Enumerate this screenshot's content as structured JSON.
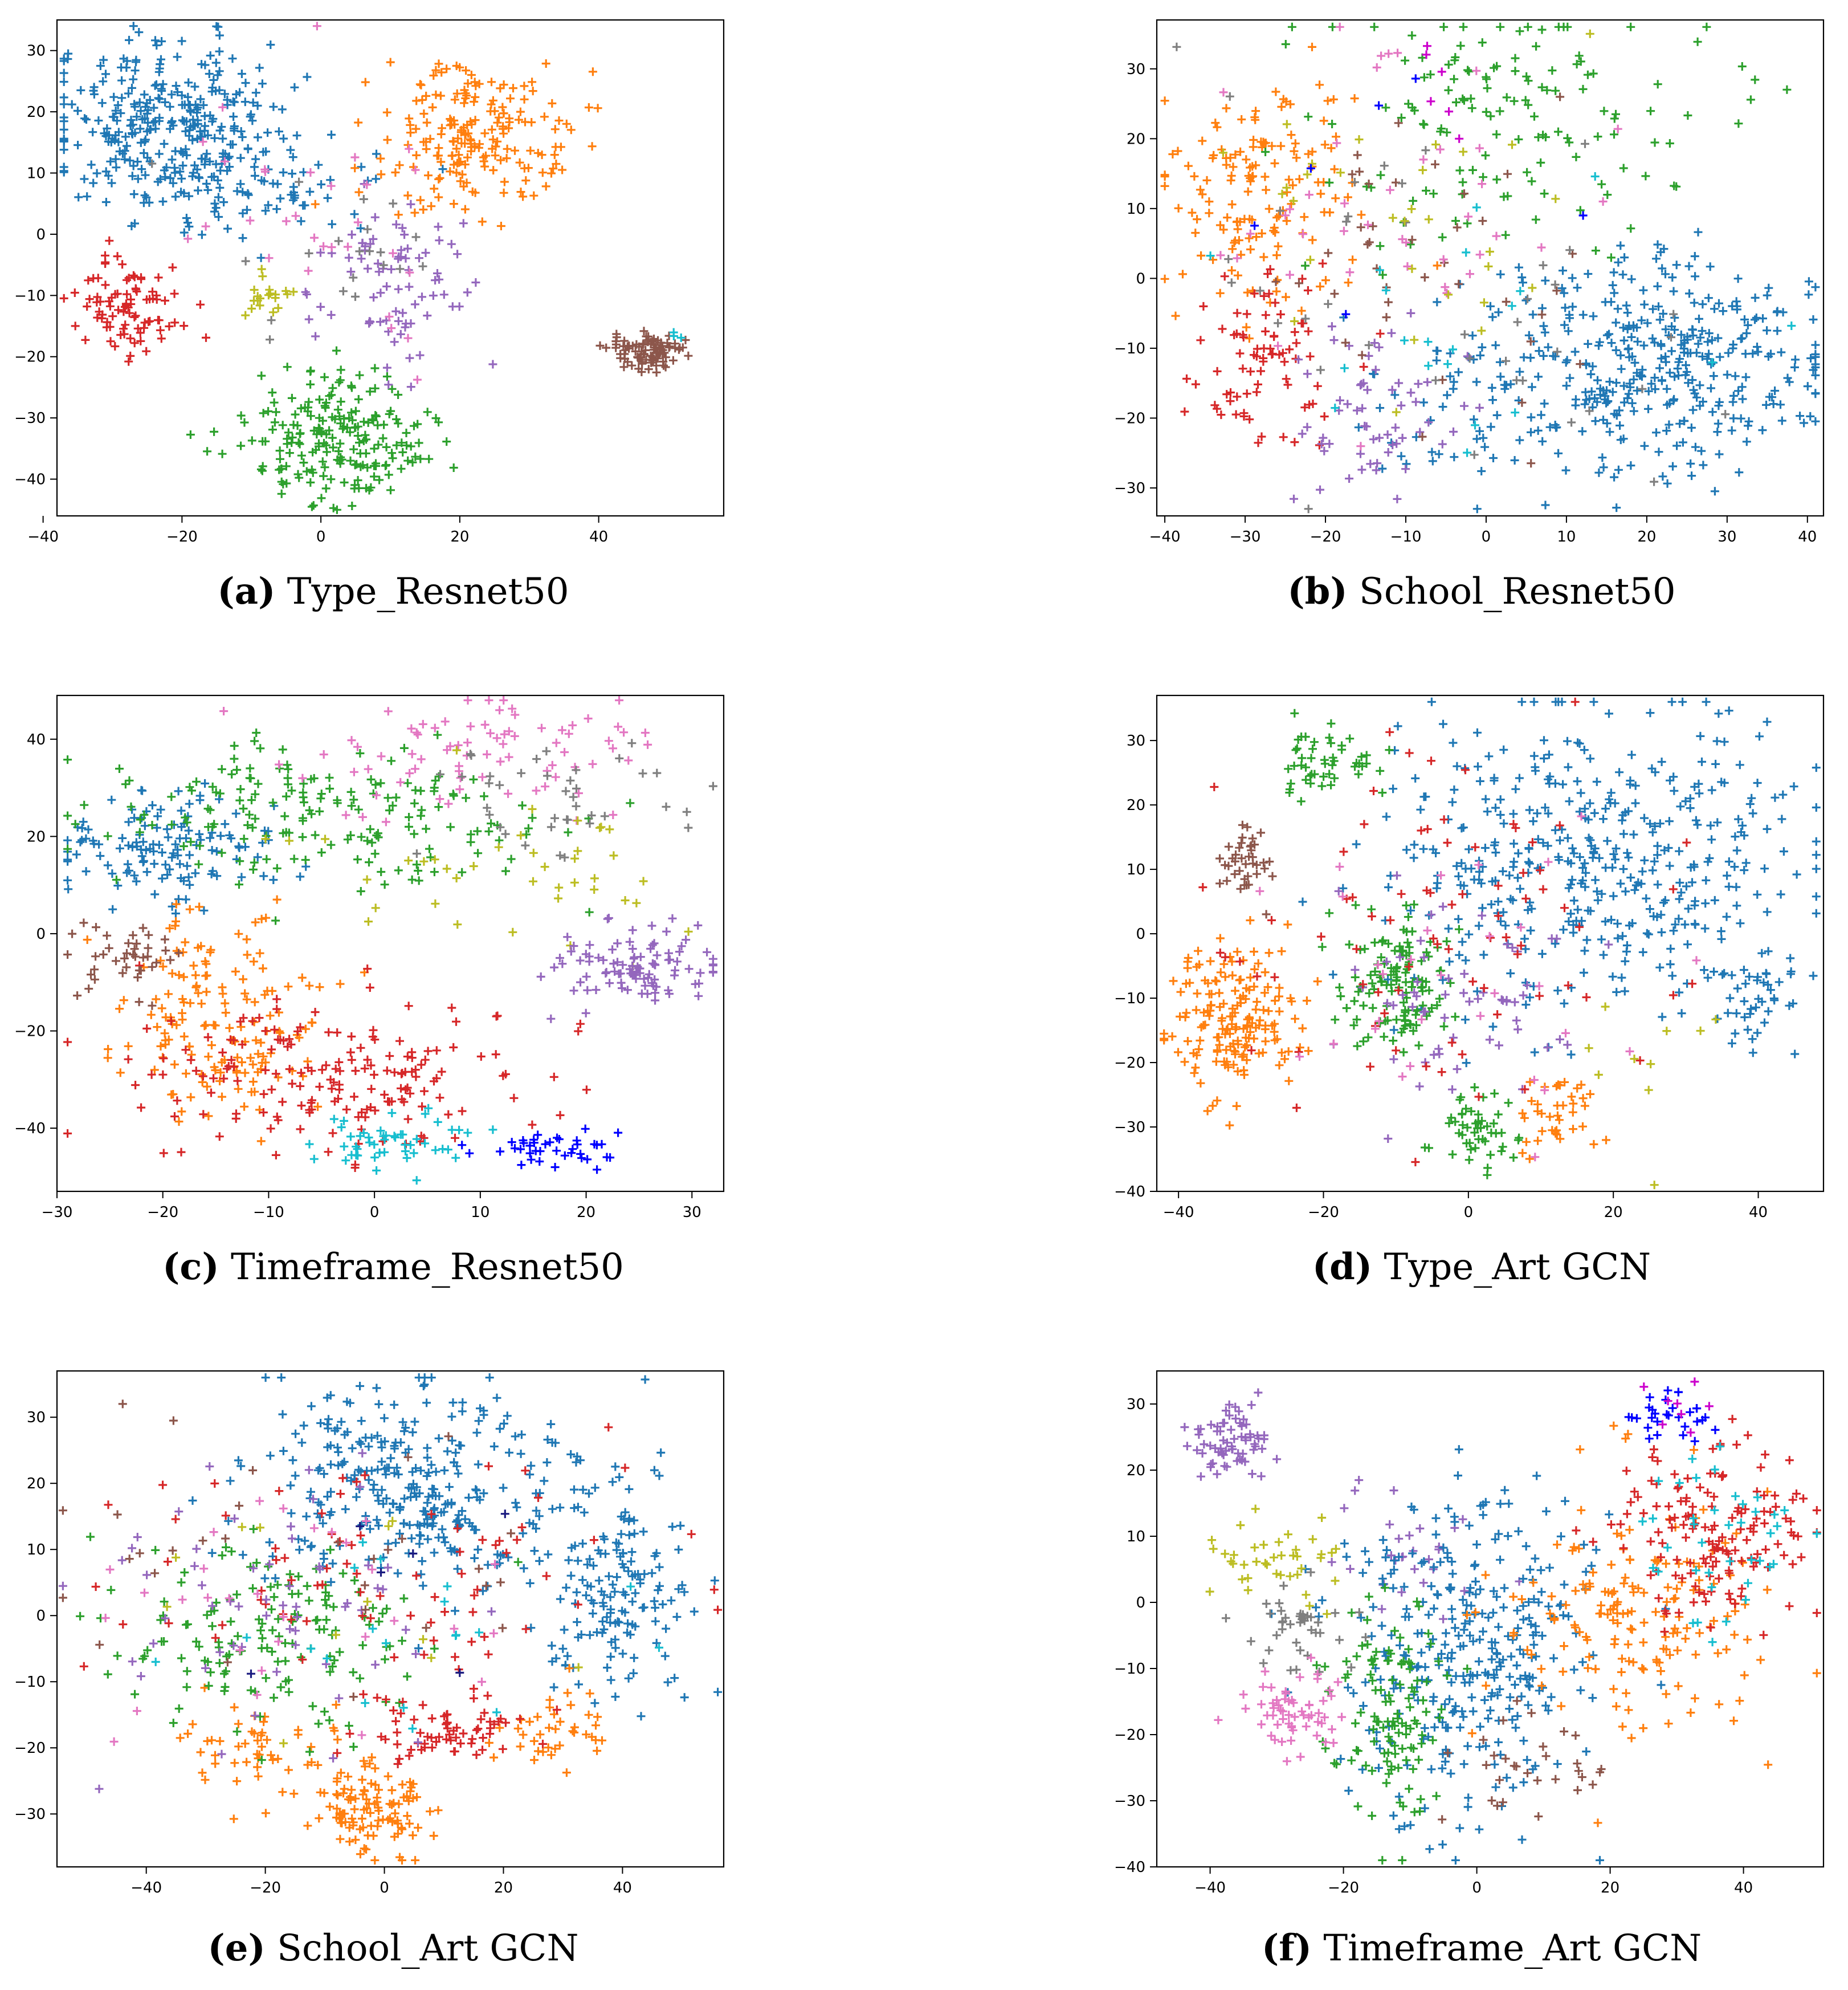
{
  "figure": {
    "palette": {
      "blue": "#1f77b4",
      "orange": "#ff7f0e",
      "green": "#2ca02c",
      "red": "#d62728",
      "purple": "#9467bd",
      "brown": "#8c564b",
      "pink": "#e377c2",
      "gray": "#7f7f7f",
      "olive": "#bcbd22",
      "cyan": "#17becf",
      "darkblue": "#0000ff",
      "magenta": "#cc00cc",
      "navy": "#1a1a80"
    },
    "marker": "+"
  },
  "chart_data": [
    {
      "id": "a",
      "type": "scatter",
      "caption_letter": "(a)",
      "caption_text": "Type_Resnet50",
      "xlim": [
        -38,
        58
      ],
      "ylim": [
        -46,
        35
      ],
      "xticks": [
        -40,
        -20,
        0,
        20,
        40
      ],
      "yticks": [
        -40,
        -30,
        -20,
        -10,
        0,
        10,
        20,
        30
      ],
      "clusters": [
        {
          "color": "blue",
          "cx": -22,
          "cy": 18,
          "sx": 9,
          "sy": 7,
          "n": 320
        },
        {
          "color": "blue",
          "cx": -8,
          "cy": 8,
          "sx": 8,
          "sy": 4,
          "n": 60
        },
        {
          "color": "orange",
          "cx": 22,
          "cy": 16,
          "sx": 7,
          "sy": 6,
          "n": 200
        },
        {
          "color": "green",
          "cx": 2,
          "cy": -33,
          "sx": 7,
          "sy": 5,
          "n": 210
        },
        {
          "color": "red",
          "cx": -28,
          "cy": -12,
          "sx": 4,
          "sy": 4,
          "n": 90
        },
        {
          "color": "brown",
          "cx": 47,
          "cy": -19,
          "sx": 2.5,
          "sy": 1.6,
          "n": 90
        },
        {
          "color": "purple",
          "cx": 12,
          "cy": -9,
          "sx": 6,
          "sy": 6,
          "n": 80
        },
        {
          "color": "olive",
          "cx": -9,
          "cy": -10,
          "sx": 2,
          "sy": 2,
          "n": 20
        },
        {
          "color": "pink",
          "cx": 4,
          "cy": 0,
          "sx": 10,
          "sy": 10,
          "n": 30
        },
        {
          "color": "gray",
          "cx": 5,
          "cy": -5,
          "sx": 10,
          "sy": 8,
          "n": 20
        },
        {
          "color": "cyan",
          "cx": 51,
          "cy": -17,
          "sx": 1,
          "sy": 1,
          "n": 3
        }
      ]
    },
    {
      "id": "b",
      "type": "scatter",
      "caption_letter": "(b)",
      "caption_text": "School_Resnet50",
      "xlim": [
        -41,
        42
      ],
      "ylim": [
        -34,
        37
      ],
      "xticks": [
        -40,
        -30,
        -20,
        -10,
        0,
        10,
        20,
        30,
        40
      ],
      "yticks": [
        -30,
        -20,
        -10,
        0,
        10,
        20,
        30
      ],
      "clusters": [
        {
          "color": "blue",
          "cx": 25,
          "cy": -12,
          "sx": 10,
          "sy": 8,
          "n": 300
        },
        {
          "color": "blue",
          "cx": 5,
          "cy": -15,
          "sx": 10,
          "sy": 8,
          "n": 120
        },
        {
          "color": "orange",
          "cx": -28,
          "cy": 12,
          "sx": 6,
          "sy": 8,
          "n": 150
        },
        {
          "color": "green",
          "cx": 2,
          "cy": 22,
          "sx": 12,
          "sy": 9,
          "n": 140
        },
        {
          "color": "red",
          "cx": -28,
          "cy": -10,
          "sx": 5,
          "sy": 6,
          "n": 80
        },
        {
          "color": "purple",
          "cx": -14,
          "cy": -20,
          "sx": 6,
          "sy": 6,
          "n": 60
        },
        {
          "color": "brown",
          "cx": -5,
          "cy": 0,
          "sx": 12,
          "sy": 12,
          "n": 40
        },
        {
          "color": "pink",
          "cx": -10,
          "cy": 10,
          "sx": 12,
          "sy": 14,
          "n": 40
        },
        {
          "color": "gray",
          "cx": -5,
          "cy": 0,
          "sx": 15,
          "sy": 14,
          "n": 40
        },
        {
          "color": "olive",
          "cx": -8,
          "cy": 10,
          "sx": 14,
          "sy": 12,
          "n": 30
        },
        {
          "color": "cyan",
          "cx": -5,
          "cy": -5,
          "sx": 14,
          "sy": 12,
          "n": 20
        },
        {
          "color": "darkblue",
          "cx": -10,
          "cy": 20,
          "sx": 10,
          "sy": 10,
          "n": 6
        },
        {
          "color": "magenta",
          "cx": -10,
          "cy": 25,
          "sx": 8,
          "sy": 6,
          "n": 6
        }
      ]
    },
    {
      "id": "c",
      "type": "scatter",
      "caption_letter": "(c)",
      "caption_text": "Timeframe_Resnet50",
      "xlim": [
        -30,
        33
      ],
      "ylim": [
        -53,
        49
      ],
      "xticks": [
        -30,
        -20,
        -10,
        0,
        10,
        20,
        30
      ],
      "yticks": [
        -40,
        -20,
        0,
        20,
        40
      ],
      "clusters": [
        {
          "color": "blue",
          "cx": -20,
          "cy": 17,
          "sx": 5,
          "sy": 6,
          "n": 130
        },
        {
          "color": "green",
          "cx": -5,
          "cy": 25,
          "sx": 10,
          "sy": 8,
          "n": 180
        },
        {
          "color": "pink",
          "cx": 10,
          "cy": 37,
          "sx": 9,
          "sy": 6,
          "n": 80
        },
        {
          "color": "gray",
          "cx": 18,
          "cy": 28,
          "sx": 8,
          "sy": 6,
          "n": 40
        },
        {
          "color": "olive",
          "cx": 12,
          "cy": 15,
          "sx": 10,
          "sy": 10,
          "n": 40
        },
        {
          "color": "purple",
          "cx": 25,
          "cy": -7,
          "sx": 4,
          "sy": 4,
          "n": 100
        },
        {
          "color": "orange",
          "cx": -15,
          "cy": -18,
          "sx": 5,
          "sy": 10,
          "n": 160
        },
        {
          "color": "red",
          "cx": -5,
          "cy": -30,
          "sx": 10,
          "sy": 8,
          "n": 180
        },
        {
          "color": "cyan",
          "cx": 3,
          "cy": -43,
          "sx": 4,
          "sy": 3,
          "n": 50
        },
        {
          "color": "darkblue",
          "cx": 17,
          "cy": -44,
          "sx": 3,
          "sy": 2,
          "n": 40
        },
        {
          "color": "brown",
          "cx": -24,
          "cy": -5,
          "sx": 3,
          "sy": 4,
          "n": 40
        }
      ]
    },
    {
      "id": "d",
      "type": "scatter",
      "caption_letter": "(d)",
      "caption_text": "Type_Art GCN",
      "xlim": [
        -43,
        49
      ],
      "ylim": [
        -40,
        37
      ],
      "xticks": [
        -40,
        -20,
        0,
        20,
        40
      ],
      "yticks": [
        -40,
        -30,
        -20,
        -10,
        0,
        10,
        20,
        30
      ],
      "clusters": [
        {
          "color": "blue",
          "cx": 18,
          "cy": 12,
          "sx": 14,
          "sy": 12,
          "n": 420
        },
        {
          "color": "blue",
          "cx": 40,
          "cy": -10,
          "sx": 3,
          "sy": 4,
          "n": 40
        },
        {
          "color": "orange",
          "cx": -32,
          "cy": -13,
          "sx": 4,
          "sy": 6,
          "n": 170
        },
        {
          "color": "orange",
          "cx": 12,
          "cy": -28,
          "sx": 3,
          "sy": 3,
          "n": 40
        },
        {
          "color": "green",
          "cx": -10,
          "cy": -8,
          "sx": 4,
          "sy": 5,
          "n": 130
        },
        {
          "color": "green",
          "cx": -20,
          "cy": 27,
          "sx": 4,
          "sy": 3,
          "n": 50
        },
        {
          "color": "green",
          "cx": 1,
          "cy": -31,
          "sx": 3,
          "sy": 3,
          "n": 50
        },
        {
          "color": "brown",
          "cx": -31,
          "cy": 11,
          "sx": 2,
          "sy": 3,
          "n": 40
        },
        {
          "color": "purple",
          "cx": -3,
          "cy": -12,
          "sx": 8,
          "sy": 10,
          "n": 60
        },
        {
          "color": "red",
          "cx": -5,
          "cy": 0,
          "sx": 15,
          "sy": 14,
          "n": 80
        },
        {
          "color": "pink",
          "cx": 0,
          "cy": -5,
          "sx": 12,
          "sy": 12,
          "n": 30
        },
        {
          "color": "olive",
          "cx": 25,
          "cy": -22,
          "sx": 8,
          "sy": 6,
          "n": 10
        }
      ]
    },
    {
      "id": "e",
      "type": "scatter",
      "caption_letter": "(e)",
      "caption_text": "School_Art GCN",
      "xlim": [
        -55,
        57
      ],
      "ylim": [
        -38,
        37
      ],
      "xticks": [
        -40,
        -20,
        0,
        20,
        40
      ],
      "yticks": [
        -30,
        -20,
        -10,
        0,
        10,
        20,
        30
      ],
      "clusters": [
        {
          "color": "blue",
          "cx": 5,
          "cy": 20,
          "sx": 14,
          "sy": 8,
          "n": 320
        },
        {
          "color": "blue",
          "cx": 40,
          "cy": 4,
          "sx": 6,
          "sy": 8,
          "n": 150
        },
        {
          "color": "orange",
          "cx": -3,
          "cy": -30,
          "sx": 5,
          "sy": 4,
          "n": 110
        },
        {
          "color": "orange",
          "cx": -22,
          "cy": -20,
          "sx": 6,
          "sy": 4,
          "n": 50
        },
        {
          "color": "orange",
          "cx": 30,
          "cy": -17,
          "sx": 5,
          "sy": 3,
          "n": 40
        },
        {
          "color": "green",
          "cx": -20,
          "cy": -3,
          "sx": 14,
          "sy": 8,
          "n": 150
        },
        {
          "color": "red",
          "cx": 10,
          "cy": -17,
          "sx": 6,
          "sy": 2.5,
          "n": 70
        },
        {
          "color": "red",
          "cx": 0,
          "cy": 5,
          "sx": 25,
          "sy": 10,
          "n": 80
        },
        {
          "color": "purple",
          "cx": -20,
          "cy": 2,
          "sx": 15,
          "sy": 10,
          "n": 60
        },
        {
          "color": "brown",
          "cx": -10,
          "cy": 8,
          "sx": 25,
          "sy": 10,
          "n": 30
        },
        {
          "color": "pink",
          "cx": -20,
          "cy": -2,
          "sx": 20,
          "sy": 10,
          "n": 30
        },
        {
          "color": "cyan",
          "cx": -5,
          "cy": -3,
          "sx": 20,
          "sy": 8,
          "n": 20
        },
        {
          "color": "olive",
          "cx": -10,
          "cy": 5,
          "sx": 20,
          "sy": 10,
          "n": 12
        },
        {
          "color": "navy",
          "cx": -5,
          "cy": 0,
          "sx": 25,
          "sy": 10,
          "n": 6
        }
      ]
    },
    {
      "id": "f",
      "type": "scatter",
      "caption_letter": "(f)",
      "caption_text": "Timeframe_Art GCN",
      "xlim": [
        -48,
        52
      ],
      "ylim": [
        -40,
        35
      ],
      "xticks": [
        -40,
        -20,
        0,
        20,
        40
      ],
      "yticks": [
        -40,
        -30,
        -20,
        -10,
        0,
        10,
        20,
        30
      ],
      "clusters": [
        {
          "color": "purple",
          "cx": -37,
          "cy": 24,
          "sx": 3,
          "sy": 3,
          "n": 70
        },
        {
          "color": "purple",
          "cx": -10,
          "cy": 8,
          "sx": 6,
          "sy": 5,
          "n": 30
        },
        {
          "color": "blue",
          "cx": -2,
          "cy": -8,
          "sx": 9,
          "sy": 12,
          "n": 330
        },
        {
          "color": "green",
          "cx": -13,
          "cy": -15,
          "sx": 5,
          "sy": 10,
          "n": 120
        },
        {
          "color": "orange",
          "cx": 25,
          "cy": -3,
          "sx": 10,
          "sy": 10,
          "n": 170
        },
        {
          "color": "red",
          "cx": 36,
          "cy": 10,
          "sx": 7,
          "sy": 7,
          "n": 150
        },
        {
          "color": "cyan",
          "cx": 36,
          "cy": 10,
          "sx": 7,
          "sy": 6,
          "n": 40
        },
        {
          "color": "darkblue",
          "cx": 30,
          "cy": 28,
          "sx": 4,
          "sy": 2,
          "n": 30
        },
        {
          "color": "olive",
          "cx": -30,
          "cy": 6,
          "sx": 5,
          "sy": 3,
          "n": 40
        },
        {
          "color": "gray",
          "cx": -27,
          "cy": -3,
          "sx": 4,
          "sy": 4,
          "n": 40
        },
        {
          "color": "pink",
          "cx": -28,
          "cy": -16,
          "sx": 4,
          "sy": 4,
          "n": 60
        },
        {
          "color": "brown",
          "cx": 10,
          "cy": -25,
          "sx": 6,
          "sy": 4,
          "n": 30
        },
        {
          "color": "magenta",
          "cx": 33,
          "cy": 30,
          "sx": 3,
          "sy": 2,
          "n": 8
        }
      ]
    }
  ]
}
